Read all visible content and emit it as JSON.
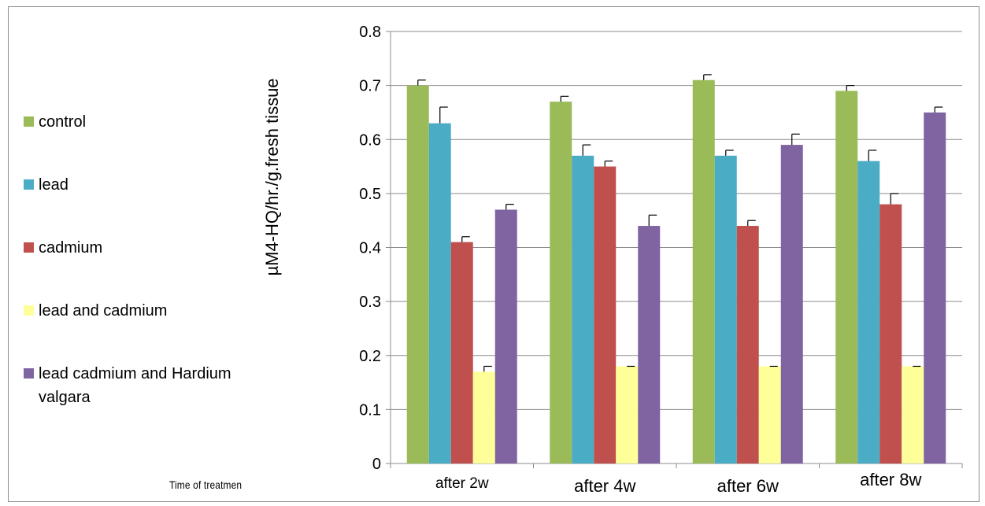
{
  "chart_data": {
    "type": "bar",
    "ylabel": "µM4-HQ/hr./g.fresh tissue",
    "xlabel": "Time of treatmen",
    "categories": [
      "after 2w",
      "after 4w",
      "after 6w",
      "after 8w"
    ],
    "ylim": [
      0,
      0.8
    ],
    "yticks": [
      "0",
      "0.1",
      "0.2",
      "0.3",
      "0.4",
      "0.5",
      "0.6",
      "0.7",
      "0.8"
    ],
    "grid": true,
    "legend_position": "left",
    "series": [
      {
        "name": "control",
        "color": "#9BBB59",
        "values": [
          0.7,
          0.67,
          0.71,
          0.69
        ],
        "errors": [
          0.01,
          0.01,
          0.01,
          0.01
        ]
      },
      {
        "name": "lead",
        "color": "#4BACC6",
        "values": [
          0.63,
          0.57,
          0.57,
          0.56
        ],
        "errors": [
          0.03,
          0.02,
          0.01,
          0.02
        ]
      },
      {
        "name": "cadmium",
        "color": "#C0504D",
        "values": [
          0.41,
          0.55,
          0.44,
          0.48
        ],
        "errors": [
          0.01,
          0.01,
          0.01,
          0.02
        ]
      },
      {
        "name": "lead and cadmium",
        "color": "#FFFF99",
        "values": [
          0.17,
          0.18,
          0.18,
          0.18
        ],
        "errors": [
          0.01,
          0.0,
          0.0,
          0.0
        ]
      },
      {
        "name": "lead cadmium and Hardium valgara",
        "color": "#8064A2",
        "values": [
          0.47,
          0.44,
          0.59,
          0.65
        ],
        "errors": [
          0.01,
          0.02,
          0.02,
          0.01
        ]
      }
    ]
  }
}
